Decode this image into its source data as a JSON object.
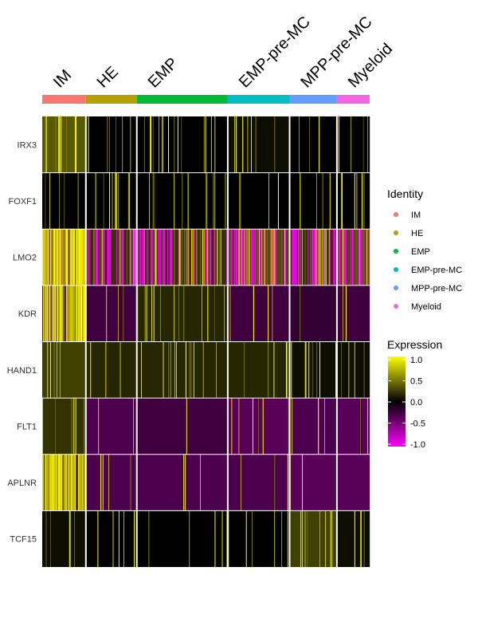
{
  "chart_data": {
    "type": "heatmap",
    "title": "",
    "xlabel": "",
    "ylabel": "",
    "groups": [
      {
        "name": "IM",
        "color": "#F8766D",
        "cells": 60
      },
      {
        "name": "HE",
        "color": "#B79F00",
        "cells": 70
      },
      {
        "name": "EMP",
        "color": "#00BA38",
        "cells": 125
      },
      {
        "name": "EMP-pre-MC",
        "color": "#00BFC4",
        "cells": 85
      },
      {
        "name": "MPP-pre-MC",
        "color": "#619CFF",
        "cells": 65
      },
      {
        "name": "Myeloid",
        "color": "#F564E3",
        "cells": 45
      }
    ],
    "genes": [
      "IRX3",
      "FOXF1",
      "LMO2",
      "KDR",
      "HAND1",
      "FLT1",
      "APLNR",
      "TCF15"
    ],
    "mean_scaled_expression": {
      "IRX3": [
        0.35,
        0.0,
        0.0,
        0.05,
        0.0,
        0.0
      ],
      "FOXF1": [
        0.0,
        0.0,
        0.0,
        0.0,
        0.0,
        0.0
      ],
      "LMO2": [
        0.9,
        0.2,
        0.2,
        0.3,
        0.2,
        0.3
      ],
      "KDR": [
        0.85,
        -0.25,
        0.15,
        -0.25,
        -0.2,
        -0.25
      ],
      "HAND1": [
        0.25,
        0.15,
        0.15,
        0.15,
        0.05,
        0.05
      ],
      "FLT1": [
        0.2,
        -0.3,
        -0.25,
        -0.35,
        -0.3,
        -0.35
      ],
      "APLNR": [
        0.85,
        -0.3,
        -0.3,
        -0.3,
        -0.35,
        -0.35
      ],
      "TCF15": [
        0.05,
        0.0,
        0.0,
        0.0,
        0.25,
        0.05
      ]
    },
    "legend_identity": {
      "title": "Identity",
      "entries": [
        {
          "label": "IM",
          "color": "#F8766D"
        },
        {
          "label": "HE",
          "color": "#B79F00"
        },
        {
          "label": "EMP",
          "color": "#00BA38"
        },
        {
          "label": "EMP-pre-MC",
          "color": "#00BFC4"
        },
        {
          "label": "MPP-pre-MC",
          "color": "#619CFF"
        },
        {
          "label": "Myeloid",
          "color": "#F564E3"
        }
      ]
    },
    "legend_expression": {
      "title": "Expression",
      "ticks": [
        "1.0",
        "0.5",
        "0.0",
        "-0.5",
        "-1.0"
      ],
      "tick_values": [
        1.0,
        0.5,
        0.0,
        -0.5,
        -1.0
      ],
      "range": [
        -1.0,
        1.0
      ],
      "colors": {
        "low": "#FF00FF",
        "mid": "#000000",
        "high": "#FFFF00"
      }
    }
  }
}
